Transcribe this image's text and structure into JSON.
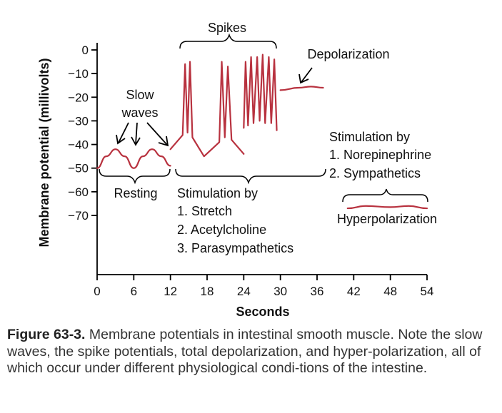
{
  "chart_data": {
    "type": "line",
    "xlabel": "Seconds",
    "ylabel": "Membrane potential (millivolts)",
    "xlim": [
      0,
      54
    ],
    "ylim": [
      -70,
      0
    ],
    "x_ticks": [
      "0",
      "6",
      "12",
      "18",
      "24",
      "30",
      "36",
      "42",
      "48",
      "54"
    ],
    "y_ticks": [
      "0",
      "−10",
      "−20",
      "−30",
      "−40",
      "−50",
      "−60",
      "−70"
    ],
    "series": [
      {
        "segment": "resting",
        "x": [
          0,
          1.5,
          3,
          4.5,
          6,
          7.5,
          9,
          10.5,
          12
        ],
        "y": [
          -50,
          -45,
          -42,
          -45,
          -50,
          -45,
          -42,
          -45,
          -49
        ]
      },
      {
        "segment": "stimulation",
        "x": [
          12,
          14,
          14.4,
          14.8,
          15.2,
          15.6,
          17.5,
          20,
          20.4,
          20.9,
          21.4,
          22,
          24
        ],
        "y": [
          -42,
          -36,
          -6,
          -35,
          -5,
          -37,
          -45,
          -39,
          -5,
          -37,
          -7,
          -38,
          -44
        ]
      },
      {
        "segment": "spikes",
        "x": [
          24,
          24.3,
          24.7,
          25.2,
          25.6,
          26.2,
          26.6,
          27.1,
          27.5,
          28.1,
          28.5,
          29,
          29.4
        ],
        "y": [
          -33,
          -5,
          -32,
          -3,
          -31,
          -3,
          -30,
          -2,
          -31,
          -3,
          -31,
          -4,
          -34
        ]
      },
      {
        "segment": "depolarization",
        "x": [
          30,
          33,
          35,
          37
        ],
        "y": [
          -17,
          -16,
          -15.5,
          -16
        ]
      },
      {
        "segment": "hyperpolarization",
        "x": [
          41,
          44,
          48,
          51,
          54
        ],
        "y": [
          -67,
          -66,
          -66.5,
          -66,
          -67
        ]
      }
    ],
    "annotations": {
      "spikes": "Spikes",
      "depolarization": "Depolarization",
      "slow_waves_line1": "Slow",
      "slow_waves_line2": "waves",
      "resting": "Resting",
      "stim_title": "Stimulation by",
      "stim_1": "1. Stretch",
      "stim_2": "2. Acetylcholine",
      "stim_3": "3. Parasympathetics",
      "symp_title": "Stimulation by",
      "symp_1": "1. Norepinephrine",
      "symp_2": "2. Sympathetics",
      "hyperpolarization": "Hyperpolarization"
    },
    "grid": false,
    "trace_color": "#b8323f"
  },
  "caption": {
    "label": "Figure 63-3.",
    "text": "Membrane potentials in intestinal smooth muscle. Note the slow waves, the spike potentials, total depolarization, and hyper-polarization, all of which occur under different physiological condi-tions of the intestine."
  }
}
